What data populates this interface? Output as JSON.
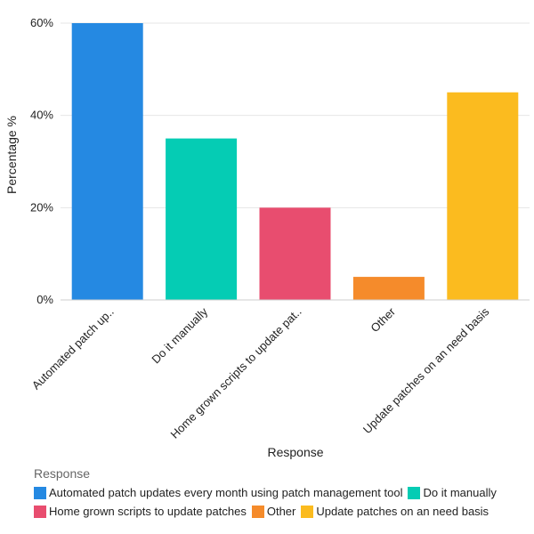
{
  "chart_data": {
    "type": "bar",
    "title": "",
    "xlabel": "Response",
    "ylabel": "Percentage %",
    "ylim": [
      0,
      60
    ],
    "yticks": [
      "0%",
      "20%",
      "40%",
      "60%"
    ],
    "ytick_values": [
      0,
      20,
      40,
      60
    ],
    "grid": true,
    "categories": [
      "Automated patch updates every month using patch management tool",
      "Do it manually",
      "Home grown scripts to update patches",
      "Other",
      "Update patches on an need basis"
    ],
    "tick_labels": [
      "Automated patch up..",
      "Do it manually",
      "Home grown scripts to update pat..",
      "Other",
      "Update patches on an need basis"
    ],
    "values": [
      60,
      35,
      20,
      5,
      45
    ],
    "colors": [
      "#2589e2",
      "#05ccb4",
      "#e84d6f",
      "#f58b2b",
      "#fbbb1f"
    ],
    "legend": {
      "title": "Response",
      "position": "bottom-left",
      "entries": [
        "Automated patch updates every month using patch management tool",
        "Do it manually",
        "Home grown scripts to update patches",
        "Other",
        "Update patches on an need basis"
      ]
    }
  }
}
